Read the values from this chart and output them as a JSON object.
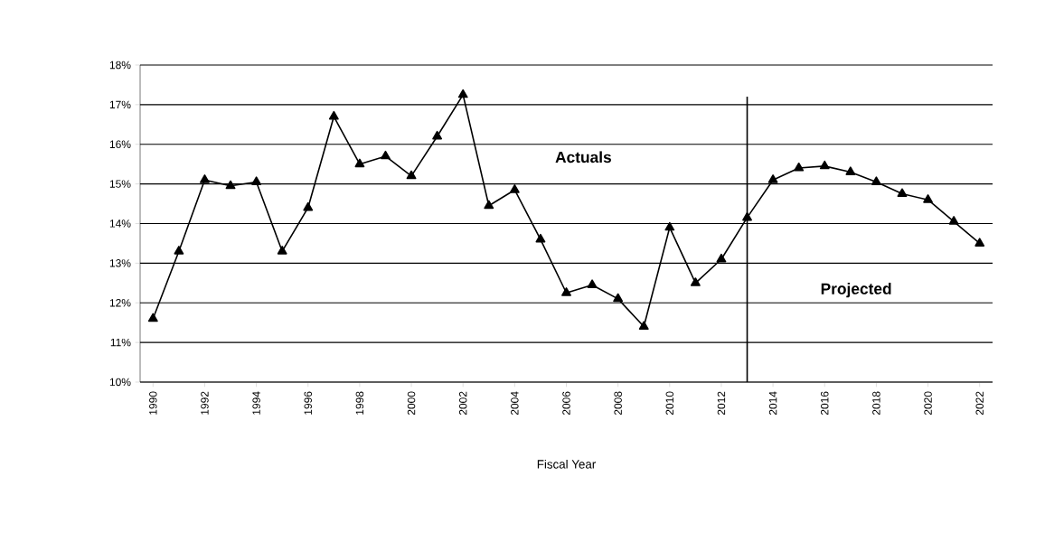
{
  "chart_data": {
    "type": "line",
    "xlabel": "Fiscal Year",
    "x": [
      1990,
      1991,
      1992,
      1993,
      1994,
      1995,
      1996,
      1997,
      1998,
      1999,
      2000,
      2001,
      2002,
      2003,
      2004,
      2005,
      2006,
      2007,
      2008,
      2009,
      2010,
      2011,
      2012,
      2013,
      2014,
      2015,
      2016,
      2017,
      2018,
      2019,
      2020,
      2021,
      2022
    ],
    "series": [
      {
        "color": "#000000",
        "values": [
          11.6,
          13.3,
          15.1,
          14.95,
          15.05,
          13.3,
          14.4,
          16.7,
          15.5,
          15.7,
          15.2,
          16.2,
          17.25,
          14.45,
          14.85,
          13.6,
          12.25,
          12.45,
          12.1,
          11.4,
          13.9,
          12.5,
          13.1,
          14.15,
          15.1,
          15.4,
          15.45,
          15.3,
          15.05,
          14.75,
          14.6,
          14.05,
          13.5
        ]
      }
    ],
    "xlim": [
      1989.5,
      2022.5
    ],
    "xticks": [
      1990,
      1992,
      1994,
      1996,
      1998,
      2000,
      2002,
      2004,
      2006,
      2008,
      2010,
      2012,
      2014,
      2016,
      2018,
      2020,
      2022
    ],
    "ylim": [
      10,
      18
    ],
    "yticks": [
      {
        "value": 10,
        "label": "10%"
      },
      {
        "value": 11,
        "label": "11%"
      },
      {
        "value": 12,
        "label": "12%"
      },
      {
        "value": 13,
        "label": "13%"
      },
      {
        "value": 14,
        "label": "14%"
      },
      {
        "value": 15,
        "label": "15%"
      },
      {
        "value": 16,
        "label": "16%"
      },
      {
        "value": 17,
        "label": "17%"
      },
      {
        "value": 18,
        "label": "18%"
      }
    ],
    "ref_lines": [
      {
        "axis": "x",
        "value": 2013,
        "color": "#000000"
      }
    ],
    "annotations": [
      "Actuals",
      "Projected"
    ],
    "grid": "y",
    "marker": "triangle",
    "line_style": "solid"
  }
}
